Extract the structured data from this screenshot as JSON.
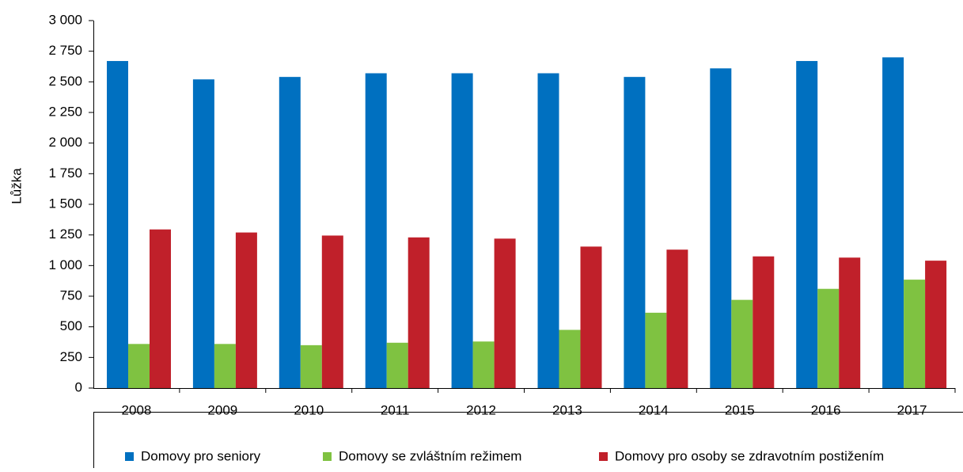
{
  "chart_data": {
    "type": "bar",
    "y_label": "Lůžka",
    "categories": [
      "2008",
      "2009",
      "2010",
      "2011",
      "2012",
      "2013",
      "2014",
      "2015",
      "2016",
      "2017"
    ],
    "series": [
      {
        "name": "Domovy pro seniory",
        "color": "#0070c0",
        "values": [
          2670,
          2520,
          2540,
          2570,
          2570,
          2570,
          2540,
          2610,
          2670,
          2700
        ]
      },
      {
        "name": "Domovy se zvláštním režimem",
        "color": "#7fc241",
        "values": [
          360,
          360,
          350,
          370,
          380,
          475,
          615,
          720,
          810,
          885
        ]
      },
      {
        "name": "Domovy pro osoby se zdravotním postižením",
        "color": "#c0202a",
        "values": [
          1295,
          1270,
          1245,
          1230,
          1220,
          1155,
          1130,
          1075,
          1065,
          1040
        ]
      }
    ],
    "ylim": [
      0,
      3000
    ],
    "yticks": [
      0,
      250,
      500,
      750,
      {
        "value": 1000,
        "label": "1 000"
      },
      {
        "value": 1250,
        "label": "1 250"
      },
      {
        "value": 1500,
        "label": "1 500"
      },
      {
        "value": 1750,
        "label": "1 750"
      },
      {
        "value": 2000,
        "label": "2 000"
      },
      {
        "value": 2250,
        "label": "2 250"
      },
      {
        "value": 2500,
        "label": "2 500"
      },
      {
        "value": 2750,
        "label": "2 750"
      },
      {
        "value": 3000,
        "label": "3 000"
      }
    ],
    "legend": "bottom"
  }
}
